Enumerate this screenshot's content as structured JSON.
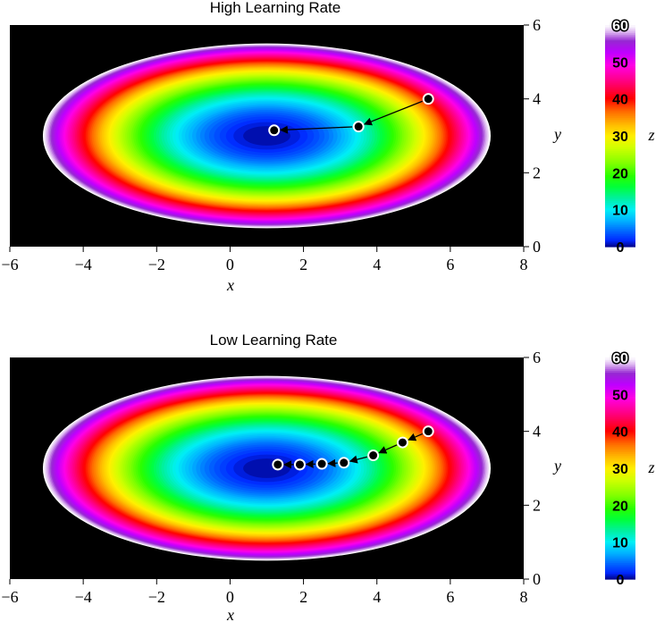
{
  "colors": {
    "background": "#000000",
    "path_line": "#000000",
    "marker_fill": "#000000",
    "marker_edge": "#ffffff"
  },
  "colormap": "gist_ncar",
  "chart_data": [
    {
      "type": "heatmap",
      "title": "High Learning Rate",
      "xlabel": "x",
      "ylabel": "y",
      "colorbar_label": "z",
      "xlim": [
        -6,
        8
      ],
      "ylim": [
        0,
        6
      ],
      "x_ticks": [
        -6,
        -4,
        -2,
        0,
        2,
        4,
        6,
        8
      ],
      "y_ticks": [
        0,
        2,
        4,
        6
      ],
      "zlim": [
        0,
        60
      ],
      "colorbar_ticks": [
        0,
        10,
        20,
        30,
        40,
        50,
        60
      ],
      "surface": {
        "center": [
          1,
          3
        ],
        "x_scale": 6.1,
        "y_scale": 2.5,
        "max_z": 60
      },
      "path": {
        "x": [
          5.4,
          3.5,
          1.2
        ],
        "y": [
          4.0,
          3.25,
          3.15
        ]
      }
    },
    {
      "type": "heatmap",
      "title": "Low Learning Rate",
      "xlabel": "x",
      "ylabel": "y",
      "colorbar_label": "z",
      "xlim": [
        -6,
        8
      ],
      "ylim": [
        0,
        6
      ],
      "x_ticks": [
        -6,
        -4,
        -2,
        0,
        2,
        4,
        6,
        8
      ],
      "y_ticks": [
        0,
        2,
        4,
        6
      ],
      "zlim": [
        0,
        60
      ],
      "colorbar_ticks": [
        0,
        10,
        20,
        30,
        40,
        50,
        60
      ],
      "surface": {
        "center": [
          1,
          3
        ],
        "x_scale": 6.1,
        "y_scale": 2.5,
        "max_z": 60
      },
      "path": {
        "x": [
          5.4,
          4.7,
          3.9,
          3.1,
          2.5,
          1.9,
          1.3
        ],
        "y": [
          4.0,
          3.7,
          3.35,
          3.15,
          3.12,
          3.1,
          3.1
        ]
      }
    }
  ]
}
